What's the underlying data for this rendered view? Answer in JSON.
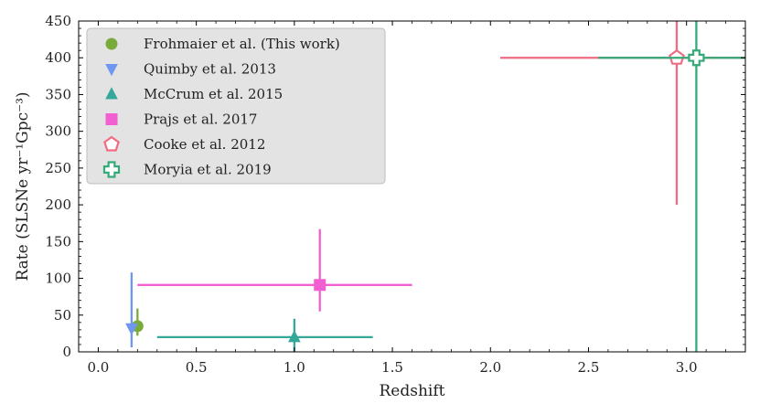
{
  "chart_data": {
    "type": "scatter",
    "xlabel": "Redshift",
    "ylabel": "Rate (SLSNe yr⁻¹Gpc⁻³)",
    "xlim": [
      -0.1,
      3.3
    ],
    "ylim": [
      0,
      450
    ],
    "xticks": [
      0.0,
      0.5,
      1.0,
      1.5,
      2.0,
      2.5,
      3.0
    ],
    "xtick_labels": [
      "0.0",
      "0.5",
      "1.0",
      "1.5",
      "2.0",
      "2.5",
      "3.0"
    ],
    "yticks": [
      0,
      50,
      100,
      150,
      200,
      250,
      300,
      350,
      400,
      450
    ],
    "ytick_labels": [
      "0",
      "50",
      "100",
      "150",
      "200",
      "250",
      "300",
      "350",
      "400",
      "450"
    ],
    "legend_position": "top-left",
    "series": [
      {
        "name": "Frohmaier et al. (This work)",
        "marker": "circle",
        "color": "#7aab3a",
        "filled": true,
        "points": [
          {
            "x": 0.2,
            "y": 35,
            "xerr": [
              0,
              0
            ],
            "yerr": [
              13,
              24
            ]
          }
        ]
      },
      {
        "name": "Quimby et al. 2013",
        "marker": "triangle-down",
        "color": "#6f97f2",
        "filled": true,
        "points": [
          {
            "x": 0.17,
            "y": 32,
            "xerr": [
              0,
              0
            ],
            "yerr": [
              26,
              76
            ]
          }
        ]
      },
      {
        "name": "McCrum et al. 2015",
        "marker": "triangle-up",
        "color": "#34a99a",
        "filled": true,
        "points": [
          {
            "x": 1.0,
            "y": 20,
            "xerr": [
              0.7,
              0.4
            ],
            "yerr": [
              20,
              25
            ]
          }
        ]
      },
      {
        "name": "Prajs et al. 2017",
        "marker": "square",
        "color": "#f15fd0",
        "filled": true,
        "points": [
          {
            "x": 1.13,
            "y": 91,
            "xerr": [
              0.93,
              0.47
            ],
            "yerr": [
              36,
              76
            ]
          }
        ]
      },
      {
        "name": "Cooke et al. 2012",
        "marker": "pentagon",
        "color": "#f06c82",
        "filled": false,
        "points": [
          {
            "x": 2.95,
            "y": 400,
            "xerr": [
              0.9,
              0.45
            ],
            "yerr": [
              200,
              400
            ]
          }
        ]
      },
      {
        "name": "Moryia et al. 2019",
        "marker": "plus",
        "color": "#35aa79",
        "filled": false,
        "points": [
          {
            "x": 3.05,
            "y": 400,
            "xerr": [
              0.5,
              0.5
            ],
            "yerr": [
              400,
              400
            ]
          }
        ]
      }
    ]
  }
}
